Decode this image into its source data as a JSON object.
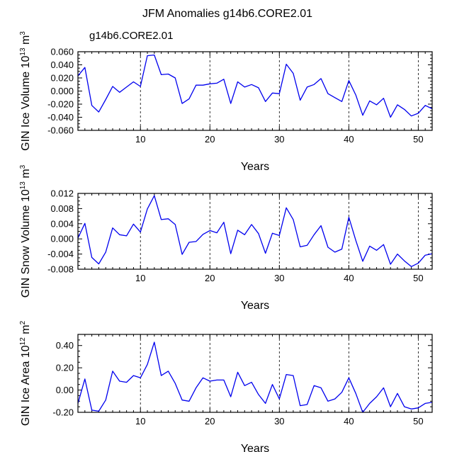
{
  "title": "JFM Anomalies g14b6.CORE2.01",
  "legend_label": "g14b6.CORE2.01",
  "colors": {
    "line": "#0000ee",
    "legend": "#0000ee",
    "axis": "#000000",
    "grid": "#000000"
  },
  "chart_data": [
    {
      "type": "line",
      "xlabel": "Years",
      "ylabel": "GIN Ice Volume 10",
      "ylabel_exp": "13",
      "ylabel_unit": " m",
      "ylabel_unit_exp": "3",
      "xlim": [
        1,
        52
      ],
      "ylim": [
        -0.06,
        0.06
      ],
      "yticks": [
        -0.06,
        -0.04,
        -0.02,
        0.0,
        0.02,
        0.04,
        0.06
      ],
      "ytick_labels": [
        "-0.060",
        "-0.040",
        "-0.020",
        "0.000",
        "0.020",
        "0.040",
        "0.060"
      ],
      "xticks": [
        10,
        20,
        30,
        40,
        50
      ],
      "xtick_labels": [
        "10",
        "20",
        "30",
        "40",
        "50"
      ],
      "grid_x": [
        10,
        20,
        30,
        40,
        50
      ],
      "series": [
        {
          "x": [
            1,
            2,
            3,
            4,
            5,
            6,
            7,
            8,
            9,
            10,
            11,
            12,
            13,
            14,
            15,
            16,
            17,
            18,
            19,
            20,
            21,
            22,
            23,
            24,
            25,
            26,
            27,
            28,
            29,
            30,
            31,
            32,
            33,
            34,
            35,
            36,
            37,
            38,
            39,
            40,
            41,
            42,
            43,
            44,
            45,
            46,
            47,
            48,
            49,
            50,
            51,
            52
          ],
          "values": [
            0.023,
            0.036,
            -0.022,
            -0.032,
            -0.013,
            0.007,
            -0.002,
            0.006,
            0.014,
            0.007,
            0.054,
            0.055,
            0.025,
            0.026,
            0.02,
            -0.019,
            -0.012,
            0.009,
            0.009,
            0.011,
            0.012,
            0.018,
            -0.019,
            0.014,
            0.006,
            0.01,
            0.005,
            -0.016,
            -0.003,
            -0.004,
            0.041,
            0.027,
            -0.014,
            0.006,
            0.01,
            0.019,
            -0.004,
            -0.01,
            -0.016,
            0.016,
            -0.006,
            -0.037,
            -0.015,
            -0.021,
            -0.011,
            -0.04,
            -0.021,
            -0.028,
            -0.038,
            -0.034,
            -0.022,
            -0.027
          ]
        }
      ]
    },
    {
      "type": "line",
      "xlabel": "Years",
      "ylabel": "GIN Snow Volume 10",
      "ylabel_exp": "13",
      "ylabel_unit": " m",
      "ylabel_unit_exp": "3",
      "xlim": [
        1,
        52
      ],
      "ylim": [
        -0.008,
        0.012
      ],
      "yticks": [
        -0.008,
        -0.004,
        0.0,
        0.004,
        0.008,
        0.012
      ],
      "ytick_labels": [
        "-0.008",
        "-0.004",
        "0.000",
        "0.004",
        "0.008",
        "0.012"
      ],
      "xticks": [
        10,
        20,
        30,
        40,
        50
      ],
      "xtick_labels": [
        "10",
        "20",
        "30",
        "40",
        "50"
      ],
      "grid_x": [
        10,
        20,
        30,
        40,
        50
      ],
      "series": [
        {
          "x": [
            1,
            2,
            3,
            4,
            5,
            6,
            7,
            8,
            9,
            10,
            11,
            12,
            13,
            14,
            15,
            16,
            17,
            18,
            19,
            20,
            21,
            22,
            23,
            24,
            25,
            26,
            27,
            28,
            29,
            30,
            31,
            32,
            33,
            34,
            35,
            36,
            37,
            38,
            39,
            40,
            41,
            42,
            43,
            44,
            45,
            46,
            47,
            48,
            49,
            50,
            51,
            52
          ],
          "values": [
            0.0002,
            0.0041,
            -0.0049,
            -0.0066,
            -0.0035,
            0.0029,
            0.0011,
            0.0008,
            0.0039,
            0.0018,
            0.0079,
            0.0114,
            0.0051,
            0.0053,
            0.0038,
            -0.0041,
            -0.0009,
            -0.0007,
            0.0012,
            0.0022,
            0.0016,
            0.0044,
            -0.0039,
            0.0023,
            0.0011,
            0.0038,
            0.0014,
            -0.0038,
            0.0015,
            0.0009,
            0.0082,
            0.0051,
            -0.0021,
            -0.0017,
            0.0011,
            0.0035,
            -0.0022,
            -0.0035,
            -0.0027,
            0.0057,
            -0.0004,
            -0.0059,
            -0.0019,
            -0.003,
            -0.0015,
            -0.0067,
            -0.004,
            -0.0058,
            -0.0073,
            -0.0064,
            -0.0043,
            -0.0039
          ]
        }
      ]
    },
    {
      "type": "line",
      "xlabel": "Years",
      "ylabel": "GIN Ice Area 10",
      "ylabel_exp": "12",
      "ylabel_unit": " m",
      "ylabel_unit_exp": "2",
      "xlim": [
        1,
        52
      ],
      "ylim": [
        -0.2,
        0.5
      ],
      "yticks": [
        -0.2,
        0.0,
        0.2,
        0.4
      ],
      "ytick_labels": [
        "-0.20",
        "0.00",
        "0.20",
        "0.40"
      ],
      "xticks": [
        10,
        20,
        30,
        40,
        50
      ],
      "xtick_labels": [
        "10",
        "20",
        "30",
        "40",
        "50"
      ],
      "grid_x": [
        10,
        20,
        30,
        40,
        50
      ],
      "series": [
        {
          "x": [
            1,
            2,
            3,
            4,
            5,
            6,
            7,
            8,
            9,
            10,
            11,
            12,
            13,
            14,
            15,
            16,
            17,
            18,
            19,
            20,
            21,
            22,
            23,
            24,
            25,
            26,
            27,
            28,
            29,
            30,
            31,
            32,
            33,
            34,
            35,
            36,
            37,
            38,
            39,
            40,
            41,
            42,
            43,
            44,
            45,
            46,
            47,
            48,
            49,
            50,
            51,
            52
          ],
          "values": [
            -0.12,
            0.1,
            -0.18,
            -0.19,
            -0.09,
            0.17,
            0.08,
            0.07,
            0.13,
            0.11,
            0.23,
            0.43,
            0.13,
            0.17,
            0.06,
            -0.09,
            -0.1,
            0.02,
            0.11,
            0.08,
            0.09,
            0.09,
            -0.06,
            0.16,
            0.04,
            0.07,
            -0.04,
            -0.12,
            0.05,
            -0.08,
            0.14,
            0.13,
            -0.14,
            -0.13,
            0.04,
            0.02,
            -0.1,
            -0.08,
            -0.02,
            0.11,
            -0.03,
            -0.2,
            -0.12,
            -0.06,
            0.02,
            -0.15,
            -0.03,
            -0.15,
            -0.17,
            -0.16,
            -0.12,
            -0.11
          ]
        }
      ]
    }
  ]
}
